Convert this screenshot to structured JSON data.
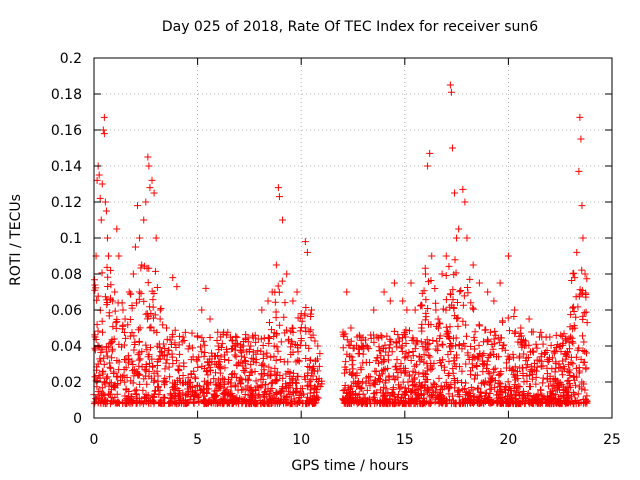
{
  "chart_data": {
    "type": "scatter",
    "title": "Day 025 of 2018, Rate Of TEC Index for receiver sun6",
    "xlabel": "GPS time / hours",
    "ylabel": "ROTI / TECUs",
    "xlim": [
      0,
      25
    ],
    "ylim": [
      0,
      0.2
    ],
    "xticks": [
      0,
      5,
      10,
      15,
      20,
      25
    ],
    "xtick_labels": [
      "0",
      "5",
      "10",
      "15",
      "20",
      "25"
    ],
    "yticks": [
      0,
      0.02,
      0.04,
      0.06,
      0.08,
      0.1,
      0.12,
      0.14,
      0.16,
      0.18,
      0.2
    ],
    "ytick_labels": [
      "0",
      "0.02",
      "0.04",
      "0.06",
      "0.08",
      "0.1",
      "0.12",
      "0.14",
      "0.16",
      "0.18",
      "0.2"
    ],
    "grid": true,
    "marker": "+",
    "color": "#ff0000",
    "data_gap_hours": [
      11.0,
      12.0
    ],
    "series": [
      {
        "name": "ROTI",
        "points": [
          [
            0.0,
            0.013
          ],
          [
            0.05,
            0.045
          ],
          [
            0.1,
            0.09
          ],
          [
            0.15,
            0.132
          ],
          [
            0.2,
            0.14
          ],
          [
            0.25,
            0.135
          ],
          [
            0.3,
            0.122
          ],
          [
            0.35,
            0.11
          ],
          [
            0.4,
            0.13
          ],
          [
            0.45,
            0.16
          ],
          [
            0.5,
            0.167
          ],
          [
            0.5,
            0.158
          ],
          [
            0.55,
            0.12
          ],
          [
            0.6,
            0.115
          ],
          [
            0.65,
            0.1
          ],
          [
            0.7,
            0.09
          ],
          [
            0.8,
            0.082
          ],
          [
            0.9,
            0.065
          ],
          [
            1.0,
            0.07
          ],
          [
            1.1,
            0.105
          ],
          [
            1.2,
            0.09
          ],
          [
            1.4,
            0.06
          ],
          [
            1.5,
            0.055
          ],
          [
            1.7,
            0.07
          ],
          [
            1.9,
            0.08
          ],
          [
            2.0,
            0.095
          ],
          [
            2.1,
            0.118
          ],
          [
            2.2,
            0.1
          ],
          [
            2.3,
            0.085
          ],
          [
            2.4,
            0.11
          ],
          [
            2.5,
            0.12
          ],
          [
            2.6,
            0.145
          ],
          [
            2.65,
            0.14
          ],
          [
            2.7,
            0.128
          ],
          [
            2.8,
            0.132
          ],
          [
            2.9,
            0.125
          ],
          [
            3.0,
            0.1
          ],
          [
            3.2,
            0.06
          ],
          [
            3.5,
            0.05
          ],
          [
            3.8,
            0.078
          ],
          [
            4.0,
            0.073
          ],
          [
            4.3,
            0.045
          ],
          [
            4.6,
            0.04
          ],
          [
            5.0,
            0.045
          ],
          [
            5.2,
            0.06
          ],
          [
            5.4,
            0.072
          ],
          [
            5.6,
            0.055
          ],
          [
            6.0,
            0.04
          ],
          [
            6.3,
            0.035
          ],
          [
            6.8,
            0.035
          ],
          [
            7.2,
            0.04
          ],
          [
            7.5,
            0.038
          ],
          [
            7.8,
            0.042
          ],
          [
            8.1,
            0.06
          ],
          [
            8.4,
            0.065
          ],
          [
            8.6,
            0.07
          ],
          [
            8.8,
            0.085
          ],
          [
            8.9,
            0.128
          ],
          [
            8.95,
            0.123
          ],
          [
            9.1,
            0.11
          ],
          [
            9.3,
            0.08
          ],
          [
            9.6,
            0.065
          ],
          [
            9.8,
            0.07
          ],
          [
            10.0,
            0.058
          ],
          [
            10.2,
            0.098
          ],
          [
            10.3,
            0.092
          ],
          [
            10.5,
            0.06
          ],
          [
            10.8,
            0.04
          ],
          [
            12.2,
            0.07
          ],
          [
            12.4,
            0.05
          ],
          [
            12.7,
            0.045
          ],
          [
            13.0,
            0.04
          ],
          [
            13.5,
            0.06
          ],
          [
            14.0,
            0.07
          ],
          [
            14.3,
            0.065
          ],
          [
            14.5,
            0.075
          ],
          [
            14.9,
            0.065
          ],
          [
            15.1,
            0.06
          ],
          [
            15.3,
            0.075
          ],
          [
            15.5,
            0.06
          ],
          [
            15.8,
            0.05
          ],
          [
            16.0,
            0.08
          ],
          [
            16.1,
            0.14
          ],
          [
            16.2,
            0.147
          ],
          [
            16.3,
            0.09
          ],
          [
            16.5,
            0.06
          ],
          [
            16.8,
            0.08
          ],
          [
            17.0,
            0.09
          ],
          [
            17.2,
            0.185
          ],
          [
            17.25,
            0.181
          ],
          [
            17.3,
            0.15
          ],
          [
            17.4,
            0.125
          ],
          [
            17.5,
            0.1
          ],
          [
            17.6,
            0.105
          ],
          [
            17.8,
            0.127
          ],
          [
            17.9,
            0.12
          ],
          [
            18.0,
            0.1
          ],
          [
            18.3,
            0.085
          ],
          [
            18.6,
            0.075
          ],
          [
            19.0,
            0.07
          ],
          [
            19.3,
            0.065
          ],
          [
            19.6,
            0.075
          ],
          [
            20.0,
            0.09
          ],
          [
            20.3,
            0.06
          ],
          [
            20.6,
            0.05
          ],
          [
            21.0,
            0.055
          ],
          [
            21.5,
            0.045
          ],
          [
            22.0,
            0.045
          ],
          [
            22.5,
            0.04
          ],
          [
            23.0,
            0.045
          ],
          [
            23.2,
            0.078
          ],
          [
            23.3,
            0.092
          ],
          [
            23.4,
            0.137
          ],
          [
            23.45,
            0.167
          ],
          [
            23.5,
            0.155
          ],
          [
            23.55,
            0.118
          ],
          [
            23.6,
            0.1
          ],
          [
            23.7,
            0.08
          ],
          [
            23.8,
            0.053
          ]
        ]
      }
    ]
  }
}
